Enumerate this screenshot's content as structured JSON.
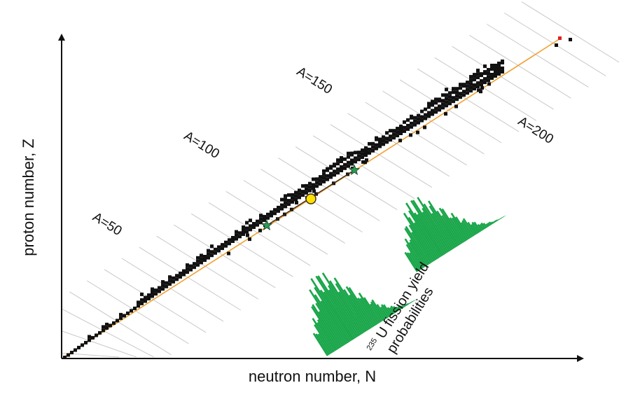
{
  "axes": {
    "x_label": "neutron number, N",
    "y_label": "proton number, Z"
  },
  "isobar_labels": [
    "A=50",
    "A=100",
    "A=150",
    "A=200"
  ],
  "fission_label": {
    "superscript": "235",
    "line1_rest": "U fission yield",
    "line2": "probabilities"
  },
  "colors": {
    "stable_nuclei": "#111111",
    "isobar_lines": "#c8c8c8",
    "n_equals_z_line": "#f0a030",
    "fission_yield": "#1aa64a",
    "compound_nucleus": "#ffe000",
    "fragment_star": "#2a9a55",
    "red_marker": "#e02020"
  }
}
